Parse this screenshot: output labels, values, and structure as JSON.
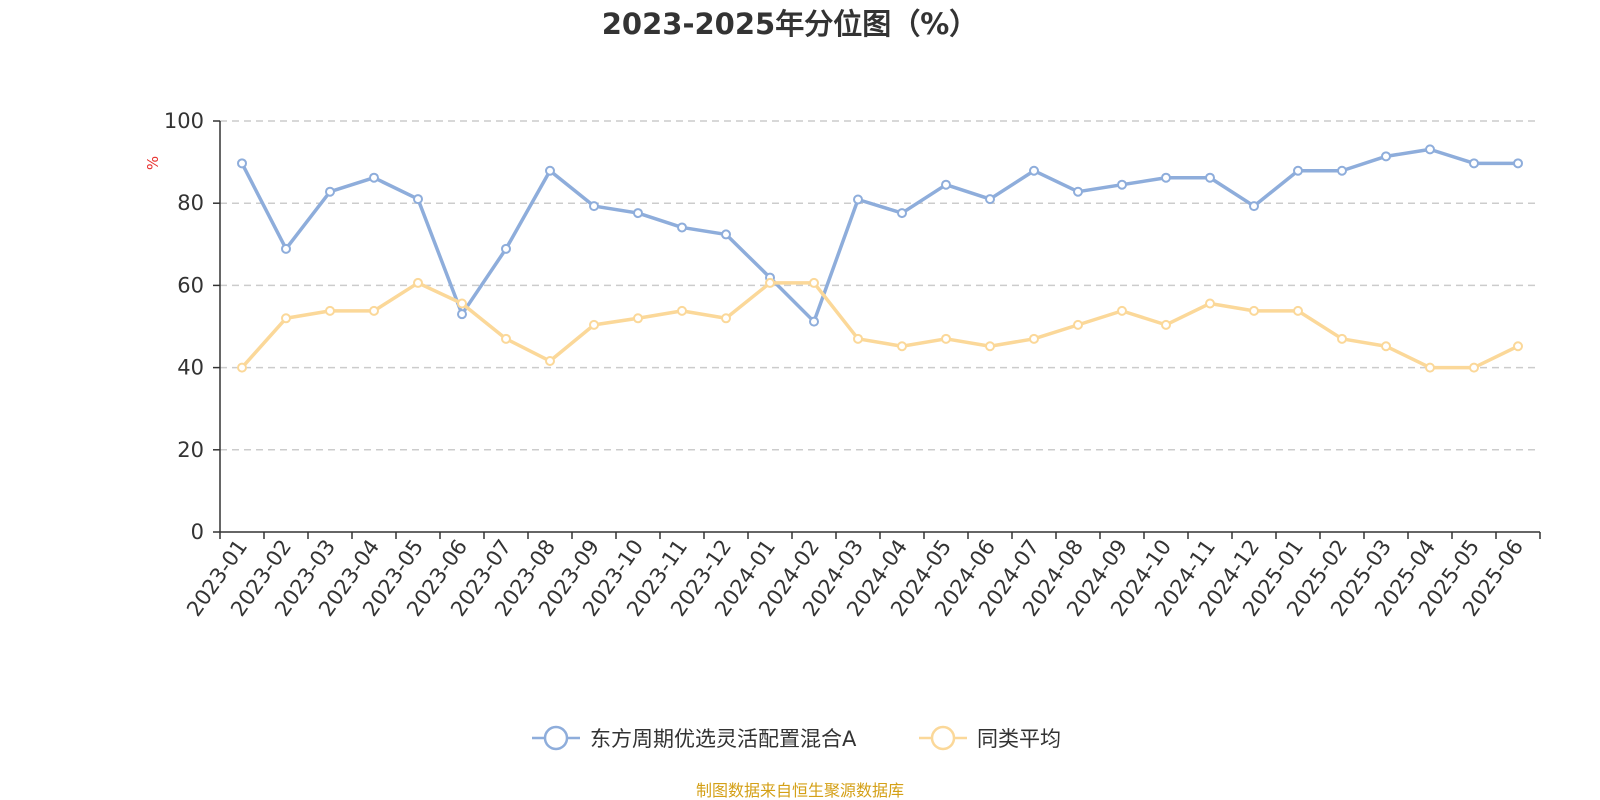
{
  "chart_data": {
    "type": "line",
    "title": "2023-2025年分位图（%）",
    "ylabel": "%",
    "xlabel": "",
    "ylim": [
      0,
      100
    ],
    "yticks": [
      0,
      20,
      40,
      60,
      80,
      100
    ],
    "grid": true,
    "legend_position": "bottom-center",
    "categories": [
      "2023-01",
      "2023-02",
      "2023-03",
      "2023-04",
      "2023-05",
      "2023-06",
      "2023-07",
      "2023-08",
      "2023-09",
      "2023-10",
      "2023-11",
      "2023-12",
      "2024-01",
      "2024-02",
      "2024-03",
      "2024-04",
      "2024-05",
      "2024-06",
      "2024-07",
      "2024-08",
      "2024-09",
      "2024-10",
      "2024-11",
      "2024-12",
      "2025-01",
      "2025-02",
      "2025-03",
      "2025-04",
      "2025-05",
      "2025-06"
    ],
    "series": [
      {
        "name": "东方周期优选灵活配置混合A",
        "color": "#8eaddb",
        "values": [
          89.7,
          68.9,
          82.8,
          86.2,
          81.0,
          53.0,
          68.9,
          87.9,
          79.3,
          77.6,
          74.1,
          72.4,
          61.9,
          51.2,
          80.9,
          77.6,
          84.5,
          81.0,
          87.9,
          82.8,
          84.5,
          86.2,
          86.2,
          79.3,
          87.9,
          87.9,
          91.4,
          93.1,
          89.7,
          89.7
        ]
      },
      {
        "name": "同类平均",
        "color": "#fbd899",
        "values": [
          40.0,
          52.0,
          53.8,
          53.8,
          60.6,
          55.6,
          47.0,
          41.6,
          50.4,
          52.0,
          53.8,
          52.0,
          60.6,
          60.6,
          47.0,
          45.2,
          47.0,
          45.2,
          47.0,
          50.4,
          53.8,
          50.4,
          55.6,
          53.8,
          53.8,
          47.0,
          45.2,
          40.0,
          40.0,
          45.2
        ]
      }
    ]
  },
  "source_note": "制图数据来自恒生聚源数据库",
  "colors": {
    "axis": "#333333",
    "grid": "#cccccc",
    "ylabel": "#e8312f",
    "source": "#d4a017"
  }
}
